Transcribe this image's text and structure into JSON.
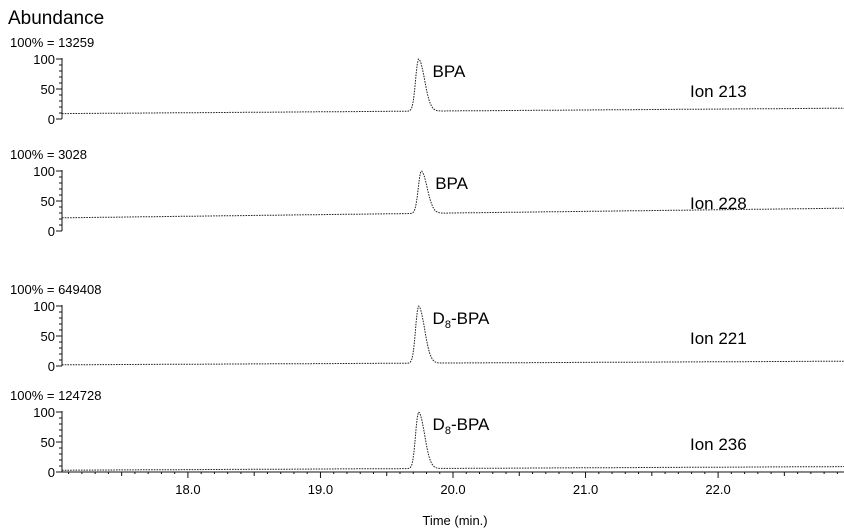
{
  "chart_data": {
    "type": "line",
    "title": "Abundance",
    "xlabel": "Time (min.)",
    "x_ticks": [
      "18.0",
      "19.0",
      "20.0",
      "21.0",
      "22.0"
    ],
    "x_range": [
      17.05,
      22.95
    ],
    "y_ticks": [
      "0",
      "50",
      "100"
    ],
    "ylim": [
      0,
      100
    ],
    "panels": [
      {
        "scale_label": "100% = 13259",
        "scale_value": 13259,
        "ion": "Ion 213",
        "peak_label": "BPA",
        "baseline_start": 9,
        "baseline_end": 18,
        "peak_rt": 19.74,
        "peak_height": 100
      },
      {
        "scale_label": "100% = 3028",
        "scale_value": 3028,
        "ion": "Ion 228",
        "peak_label": "BPA",
        "baseline_start": 22,
        "baseline_end": 38,
        "peak_rt": 19.76,
        "peak_height": 100
      },
      {
        "scale_label": "100% = 649408",
        "scale_value": 649408,
        "ion": "Ion 221",
        "peak_label": "D",
        "peak_label_sub": "8",
        "peak_label_suffix": "-BPA",
        "baseline_start": 2,
        "baseline_end": 8,
        "peak_rt": 19.74,
        "peak_height": 100
      },
      {
        "scale_label": "100% = 124728",
        "scale_value": 124728,
        "ion": "Ion 236",
        "peak_label": "D",
        "peak_label_sub": "8",
        "peak_label_suffix": "-BPA",
        "baseline_start": 3,
        "baseline_end": 9,
        "peak_rt": 19.74,
        "peak_height": 100
      }
    ]
  }
}
